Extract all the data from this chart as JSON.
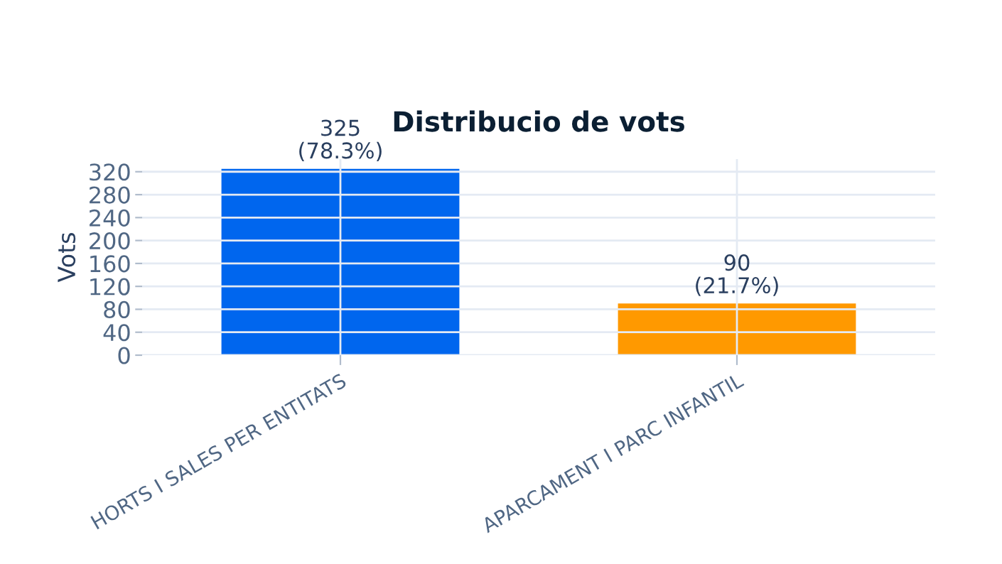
{
  "chart_data": {
    "type": "bar",
    "title": "Distribucio de vots",
    "ylabel": "Vots",
    "categories": [
      "HORTS I SALES PER ENTITATS",
      "APARCAMENT I PARC INFANTIL"
    ],
    "values": [
      325,
      90
    ],
    "colors": [
      "#0066ee",
      "#ff9900"
    ],
    "value_labels": [
      "325\n(78.3%)",
      "90\n(21.7%)"
    ],
    "ylim": [
      0,
      342
    ],
    "yticks": [
      0,
      40,
      80,
      120,
      160,
      200,
      240,
      280,
      320
    ],
    "grid": true
  }
}
